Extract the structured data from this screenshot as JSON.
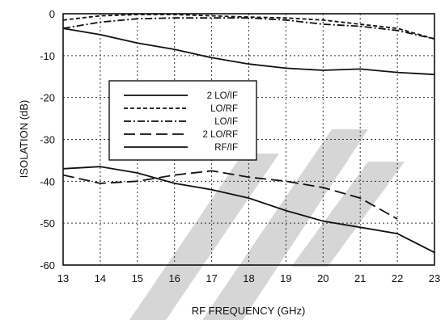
{
  "chart_data": {
    "type": "line",
    "xlabel": "RF FREQUENCY (GHz)",
    "ylabel": "ISOLATION (dB)",
    "xlim": [
      13,
      23
    ],
    "ylim": [
      -60,
      0
    ],
    "xticks": [
      13,
      14,
      15,
      16,
      17,
      18,
      19,
      20,
      21,
      22,
      23
    ],
    "yticks": [
      0,
      -10,
      -20,
      -30,
      -40,
      -50,
      -60
    ],
    "grid": true,
    "legend_placement": "center-left",
    "series": [
      {
        "name": "2 LO/IF",
        "style": "solid",
        "x": [
          13,
          14,
          15,
          16,
          17,
          18,
          19,
          20,
          21,
          22,
          23
        ],
        "y": [
          -3.5,
          -5,
          -7,
          -8.5,
          -10.5,
          -12,
          -13,
          -13.5,
          -13.2,
          -14,
          -14.5
        ]
      },
      {
        "name": "LO/RF",
        "style": "short-dash",
        "x": [
          13,
          14,
          15,
          16,
          17,
          18,
          19,
          20,
          21,
          22,
          23
        ],
        "y": [
          -1.5,
          -0.5,
          -0.2,
          -0.2,
          -0.5,
          -0.8,
          -1,
          -1.5,
          -2.5,
          -3.5,
          -6
        ]
      },
      {
        "name": "LO/IF",
        "style": "dash-dot",
        "x": [
          13,
          14,
          15,
          16,
          17,
          18,
          19,
          20,
          21,
          22,
          23
        ],
        "y": [
          -3.5,
          -2,
          -1.2,
          -1,
          -1,
          -1,
          -1.5,
          -2.5,
          -3,
          -4,
          -6
        ]
      },
      {
        "name": "2 LO/RF",
        "style": "long-dash",
        "x": [
          13,
          14,
          15,
          16,
          17,
          18,
          19,
          20,
          21,
          22
        ],
        "y": [
          -38.5,
          -40.5,
          -40,
          -38.5,
          -37.5,
          -39,
          -40,
          -41.5,
          -44,
          -49
        ]
      },
      {
        "name": "RF/IF",
        "style": "solid",
        "x": [
          13,
          14,
          15,
          16,
          17,
          18,
          19,
          20,
          21,
          22,
          23
        ],
        "y": [
          -37,
          -36.5,
          -38,
          -40.5,
          -42,
          -44,
          -47,
          -49.5,
          -51,
          -52.5,
          -57
        ]
      }
    ]
  },
  "colors": {
    "line": "#111111",
    "watermark": "#cfcfcf"
  }
}
